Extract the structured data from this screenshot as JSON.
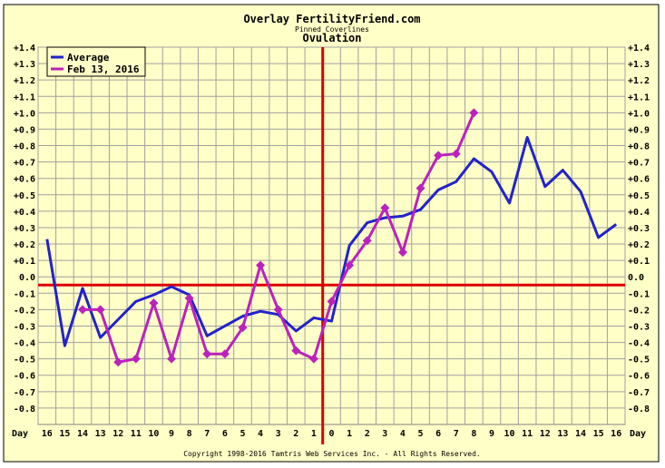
{
  "chart_data": {
    "type": "line",
    "title": "Overlay FertilityFriend.com",
    "subtitle": "Pinned Coverlines",
    "subtitle2": "Ovulation",
    "xlabel": "Day",
    "x_labels": [
      "16",
      "15",
      "14",
      "13",
      "12",
      "11",
      "10",
      "9",
      "8",
      "7",
      "6",
      "5",
      "4",
      "3",
      "2",
      "1",
      "0",
      "1",
      "2",
      "3",
      "4",
      "5",
      "6",
      "7",
      "8",
      "9",
      "10",
      "11",
      "12",
      "13",
      "14",
      "15",
      "16"
    ],
    "y_ticks": [
      "+1.4",
      "+1.3",
      "+1.2",
      "+1.1",
      "+1.0",
      "+0.9",
      "+0.8",
      "+0.7",
      "+0.6",
      "+0.5",
      "+0.4",
      "+0.3",
      "+0.2",
      "+0.1",
      "0.0",
      "-0.1",
      "-0.2",
      "-0.3",
      "-0.4",
      "-0.5",
      "-0.6",
      "-0.7",
      "-0.8"
    ],
    "ylim": [
      -0.9,
      1.4
    ],
    "coverline": -0.05,
    "ovulation_index": 16,
    "grid": true,
    "legend_position": "top-left",
    "series": [
      {
        "name": "Average",
        "color": "#2222cc",
        "markers": false,
        "points": [
          [
            0,
            0.23
          ],
          [
            1,
            -0.42
          ],
          [
            2,
            -0.07
          ],
          [
            3,
            -0.37
          ],
          [
            4,
            -0.26
          ],
          [
            5,
            -0.15
          ],
          [
            6,
            -0.11
          ],
          [
            7,
            -0.06
          ],
          [
            8,
            -0.11
          ],
          [
            9,
            -0.36
          ],
          [
            10,
            -0.3
          ],
          [
            11,
            -0.24
          ],
          [
            12,
            -0.21
          ],
          [
            13,
            -0.23
          ],
          [
            14,
            -0.33
          ],
          [
            15,
            -0.25
          ],
          [
            16,
            -0.27
          ],
          [
            17,
            0.19
          ],
          [
            18,
            0.33
          ],
          [
            19,
            0.36
          ],
          [
            20,
            0.37
          ],
          [
            21,
            0.41
          ],
          [
            22,
            0.53
          ],
          [
            23,
            0.58
          ],
          [
            24,
            0.72
          ],
          [
            25,
            0.64
          ],
          [
            26,
            0.45
          ],
          [
            27,
            0.85
          ],
          [
            28,
            0.55
          ],
          [
            29,
            0.65
          ],
          [
            30,
            0.52
          ],
          [
            31,
            0.24
          ],
          [
            32,
            0.32
          ]
        ]
      },
      {
        "name": "Feb 13, 2016",
        "color": "#bb22bb",
        "markers": true,
        "points": [
          [
            2,
            -0.2
          ],
          [
            3,
            -0.2
          ],
          [
            4,
            -0.52
          ],
          [
            5,
            -0.5
          ],
          [
            6,
            -0.16
          ],
          [
            7,
            -0.5
          ],
          [
            8,
            -0.13
          ],
          [
            9,
            -0.47
          ],
          [
            10,
            -0.47
          ],
          [
            11,
            -0.31
          ],
          [
            12,
            0.07
          ],
          [
            13,
            -0.2
          ],
          [
            14,
            -0.45
          ],
          [
            15,
            -0.5
          ],
          [
            16,
            -0.15
          ],
          [
            17,
            0.07
          ],
          [
            18,
            0.22
          ],
          [
            19,
            0.42
          ],
          [
            20,
            0.15
          ],
          [
            21,
            0.54
          ],
          [
            22,
            0.74
          ],
          [
            23,
            0.75
          ],
          [
            24,
            1.0
          ]
        ]
      }
    ],
    "footer": "Copyright 1998-2016 Tamtris Web Services Inc. - All Rights Reserved."
  },
  "colors": {
    "background": "#ffffc8",
    "grid": "#a0a0a0",
    "coverline": "#dd0000",
    "ovulation_line": "#dd0000"
  }
}
